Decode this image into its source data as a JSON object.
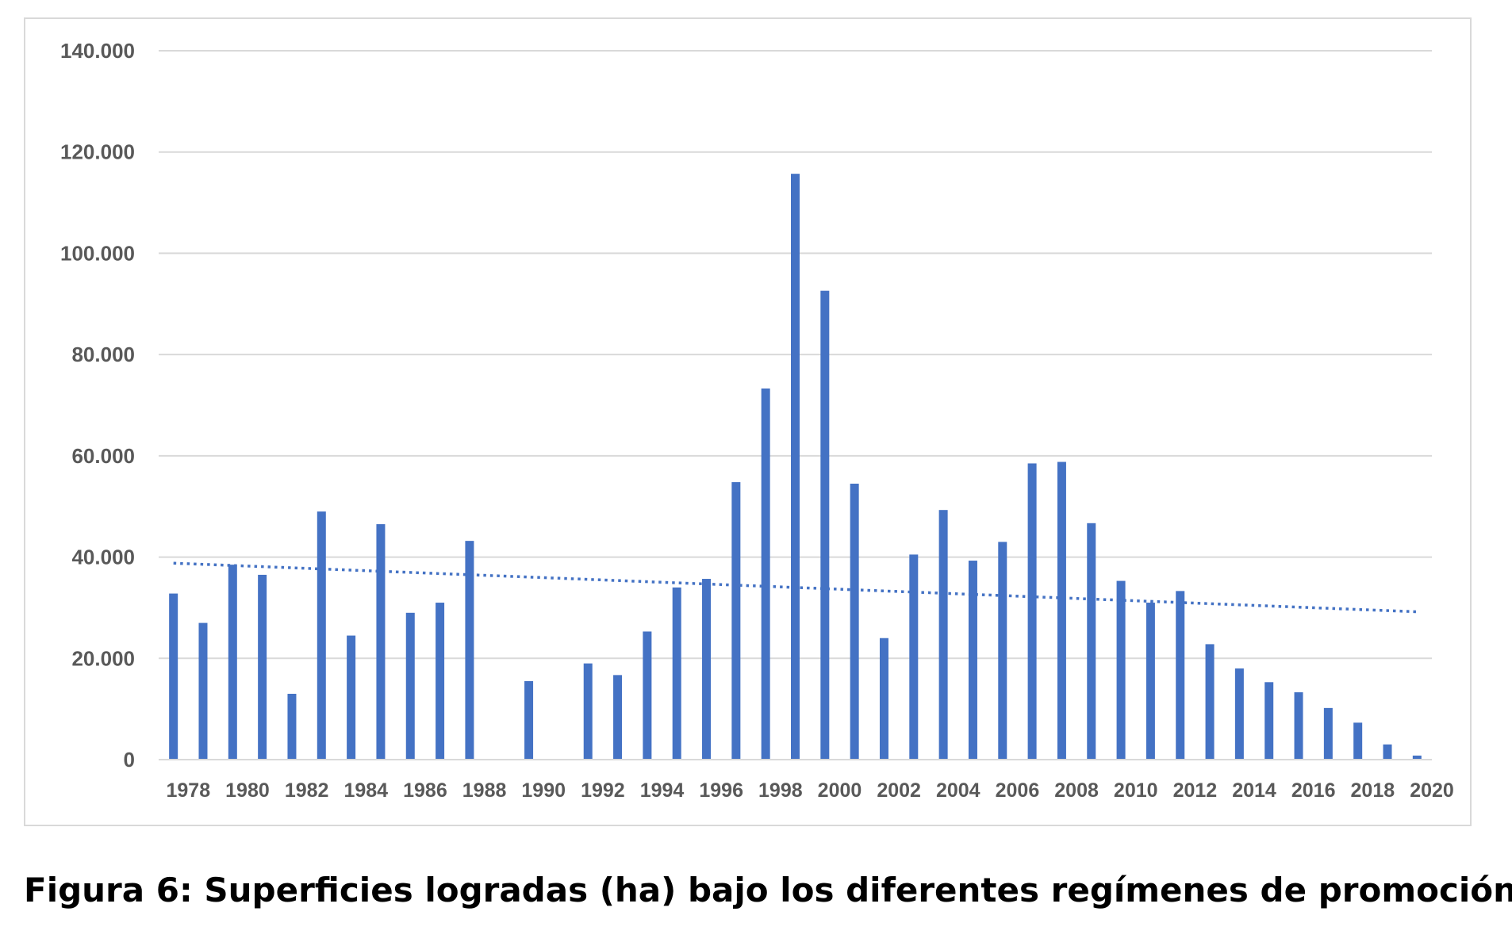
{
  "caption": "Figura 6: Superficies logradas (ha) bajo los diferentes regímenes de promoción",
  "chart_data": {
    "type": "bar",
    "x": [
      1978,
      1979,
      1980,
      1981,
      1982,
      1983,
      1984,
      1985,
      1986,
      1987,
      1988,
      1989,
      1990,
      1991,
      1992,
      1993,
      1994,
      1995,
      1996,
      1997,
      1998,
      1999,
      2000,
      2001,
      2002,
      2003,
      2004,
      2005,
      2006,
      2007,
      2008,
      2009,
      2010,
      2011,
      2012,
      2013,
      2014,
      2015,
      2016,
      2017,
      2018,
      2019,
      2020
    ],
    "values": [
      32800,
      27000,
      38500,
      36500,
      13000,
      49000,
      24500,
      46500,
      29000,
      31000,
      43200,
      0,
      15500,
      0,
      19000,
      16700,
      25300,
      34000,
      35700,
      54800,
      73300,
      115700,
      92600,
      54500,
      24000,
      40500,
      49300,
      39300,
      43000,
      58500,
      58800,
      46700,
      35300,
      31000,
      33300,
      22800,
      18000,
      15300,
      13300,
      10200,
      7300,
      3000,
      800
    ],
    "x_tick_labels": [
      "1978",
      "1980",
      "1982",
      "1984",
      "1986",
      "1988",
      "1990",
      "1992",
      "1994",
      "1996",
      "1998",
      "2000",
      "2002",
      "2004",
      "2006",
      "2008",
      "2010",
      "2012",
      "2014",
      "2016",
      "2018",
      "2020"
    ],
    "y_tick_labels": [
      "0",
      "20.000",
      "40.000",
      "60.000",
      "80.000",
      "100.000",
      "120.000",
      "140.000"
    ],
    "ylim": [
      0,
      140000
    ],
    "trendline": {
      "type": "linear",
      "start": 38800,
      "end": 29200,
      "style": "dotted"
    },
    "grid": true,
    "bar_color": "#4472C4",
    "grid_color": "#d9d9d9",
    "tick_color": "#595959"
  }
}
